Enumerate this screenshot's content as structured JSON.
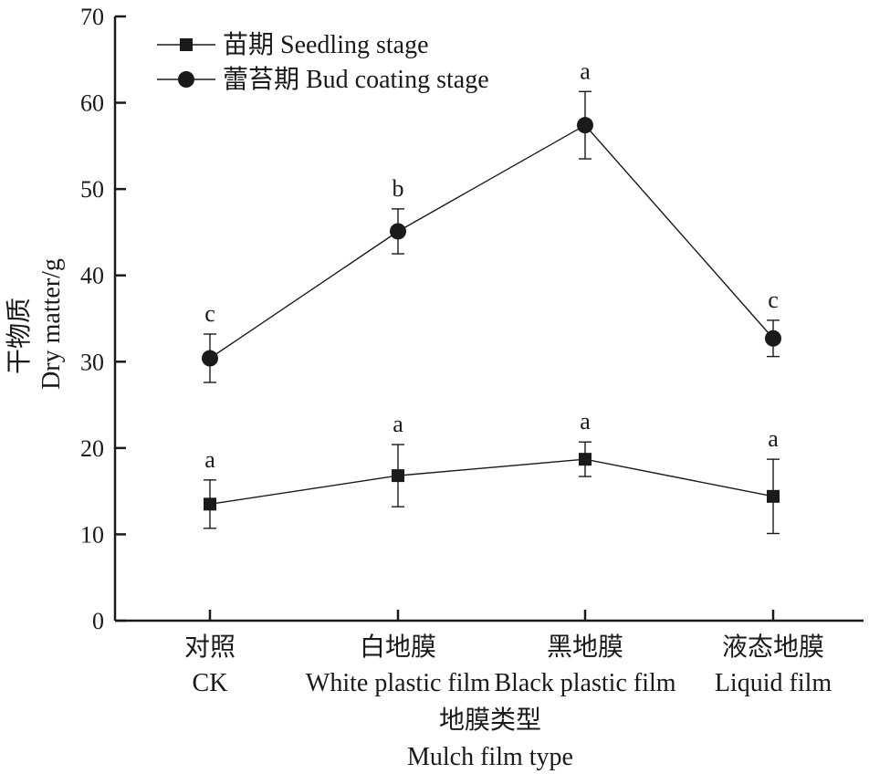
{
  "chart_data": {
    "type": "line",
    "ylabel_zh": "干物质",
    "ylabel_en": "Dry matter/g",
    "xlabel_zh": "地膜类型",
    "xlabel_en": "Mulch film type",
    "ylim": [
      0,
      70
    ],
    "yticks": [
      0,
      10,
      20,
      30,
      40,
      50,
      60,
      70
    ],
    "categories": [
      {
        "zh": "对照",
        "en": "CK"
      },
      {
        "zh": "白地膜",
        "en": "White plastic film"
      },
      {
        "zh": "黑地膜",
        "en": "Black plastic film"
      },
      {
        "zh": "液态地膜",
        "en": "Liquid film"
      }
    ],
    "legend_position": "top-left",
    "series": [
      {
        "name": "苗期 Seedling stage",
        "marker": "square",
        "values": [
          13.5,
          16.8,
          18.7,
          14.4
        ],
        "error": [
          2.8,
          3.6,
          2.0,
          4.3
        ],
        "significance": [
          "a",
          "a",
          "a",
          "a"
        ]
      },
      {
        "name": "蕾苔期 Bud coating stage",
        "marker": "circle",
        "values": [
          30.4,
          45.1,
          57.4,
          32.7
        ],
        "error": [
          2.8,
          2.6,
          3.9,
          2.1
        ],
        "significance": [
          "c",
          "b",
          "a",
          "c"
        ]
      }
    ]
  }
}
